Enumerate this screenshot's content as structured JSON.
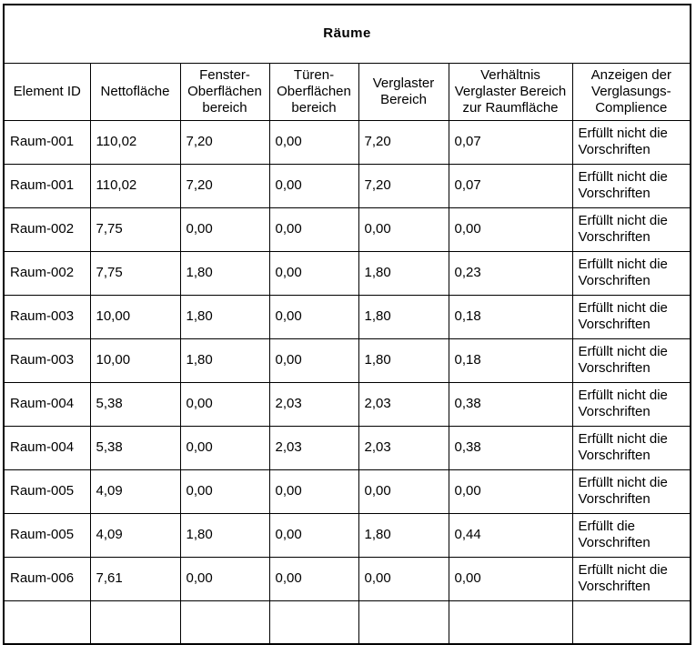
{
  "table": {
    "title": "Räume",
    "headers": [
      "Element ID",
      "Nettofläche",
      "Fenster-Oberflächen bereich",
      "Türen-Oberflächen bereich",
      "Verglaster Bereich",
      "Verhältnis Verglaster Bereich zur Raumfläche",
      "Anzeigen der Verglasungs-Complience"
    ],
    "rows": [
      [
        "Raum-001",
        "110,02",
        "7,20",
        "0,00",
        "7,20",
        "0,07",
        "Erfüllt nicht die Vorschriften"
      ],
      [
        "Raum-001",
        "110,02",
        "7,20",
        "0,00",
        "7,20",
        "0,07",
        "Erfüllt nicht die Vorschriften"
      ],
      [
        "Raum-002",
        "7,75",
        "0,00",
        "0,00",
        "0,00",
        "0,00",
        "Erfüllt nicht die Vorschriften"
      ],
      [
        "Raum-002",
        "7,75",
        "1,80",
        "0,00",
        "1,80",
        "0,23",
        "Erfüllt nicht die Vorschriften"
      ],
      [
        "Raum-003",
        "10,00",
        "1,80",
        "0,00",
        "1,80",
        "0,18",
        "Erfüllt nicht die Vorschriften"
      ],
      [
        "Raum-003",
        "10,00",
        "1,80",
        "0,00",
        "1,80",
        "0,18",
        "Erfüllt nicht die Vorschriften"
      ],
      [
        "Raum-004",
        "5,38",
        "0,00",
        "2,03",
        "2,03",
        "0,38",
        "Erfüllt nicht die Vorschriften"
      ],
      [
        "Raum-004",
        "5,38",
        "0,00",
        "2,03",
        "2,03",
        "0,38",
        "Erfüllt nicht die Vorschriften"
      ],
      [
        "Raum-005",
        "4,09",
        "0,00",
        "0,00",
        "0,00",
        "0,00",
        "Erfüllt nicht die Vorschriften"
      ],
      [
        "Raum-005",
        "4,09",
        "1,80",
        "0,00",
        "1,80",
        "0,44",
        "Erfüllt die Vorschriften"
      ],
      [
        "Raum-006",
        "7,61",
        "0,00",
        "0,00",
        "0,00",
        "0,00",
        "Erfüllt nicht die Vorschriften"
      ],
      [
        "",
        "",
        "",
        "",
        "",
        "",
        ""
      ]
    ],
    "colors": {
      "border": "#000000",
      "text": "#000000",
      "background": "#ffffff"
    }
  }
}
